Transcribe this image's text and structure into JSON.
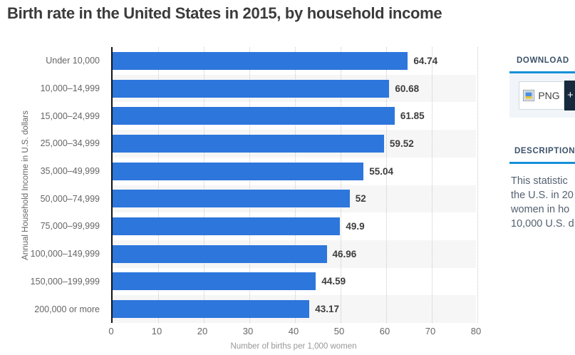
{
  "page": {
    "title": "Birth rate in the United States in 2015, by household income"
  },
  "chart_data": {
    "type": "bar",
    "orientation": "horizontal",
    "title": "Birth rate in the United States in 2015, by household income",
    "categories": [
      "Under 10,000",
      "10,000–14,999",
      "15,000–24,999",
      "25,000–34,999",
      "35,000–49,999",
      "50,000–74,999",
      "75,000–99,999",
      "100,000–149,999",
      "150,000–199,999",
      "200,000 or more"
    ],
    "values": [
      64.74,
      60.68,
      61.85,
      59.52,
      55.04,
      52,
      49.9,
      46.96,
      44.59,
      43.17
    ],
    "value_labels": [
      "64.74",
      "60.68",
      "61.85",
      "59.52",
      "55.04",
      "52",
      "49.9",
      "46.96",
      "44.59",
      "43.17"
    ],
    "xlabel": "Number of births per 1,000 women",
    "ylabel": "Annual Household Income in U.S. dollars",
    "xlim": [
      0,
      80
    ],
    "xticks": [
      0,
      10,
      20,
      30,
      40,
      50,
      60,
      70,
      80
    ],
    "grid": "vertical-dotted",
    "legend": "none",
    "bar_color": "#2d76dc",
    "stripe_color": "#f6f6f6"
  },
  "side_panel": {
    "download_header": "DOWNLOAD",
    "png_button_label": "PNG",
    "plus_button_label": "+",
    "description_header": "DESCRIPTION",
    "description_lines": [
      "This statistic",
      "the U.S. in 20",
      "women in ho",
      "10,000 U.S. d"
    ]
  },
  "colors": {
    "accent_blue": "#1590d8",
    "dark_button_navy": "#16293d",
    "bar_blue": "#2d76dc",
    "title_gray": "#3b3b3b"
  }
}
